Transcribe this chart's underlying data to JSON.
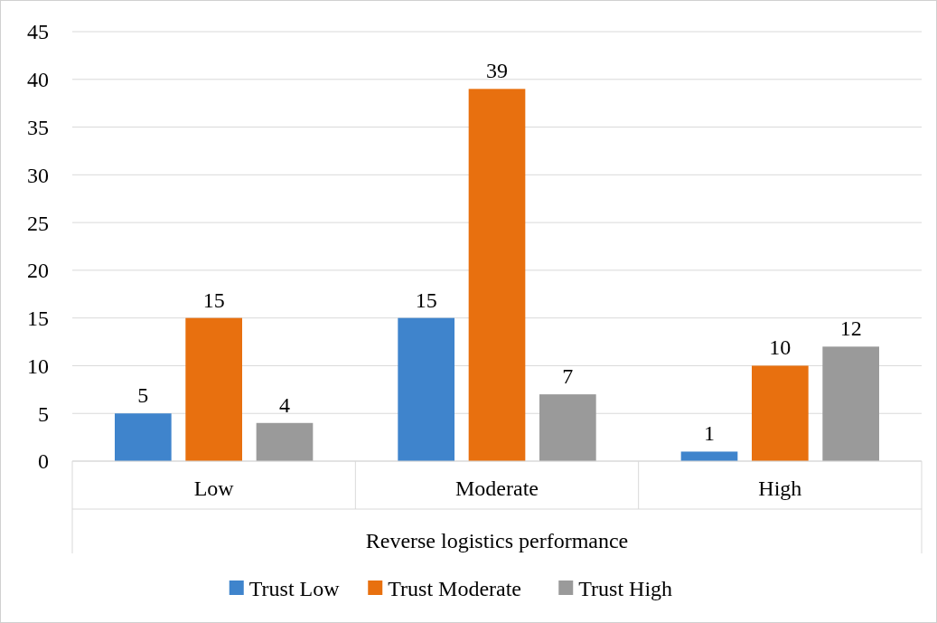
{
  "chart_data": {
    "type": "bar",
    "xlabel": "Reverse logistics performance",
    "categories": [
      "Low",
      "Moderate",
      "High"
    ],
    "series": [
      {
        "name": "Trust Low",
        "color": "#3f84cc",
        "values": [
          5,
          15,
          1
        ]
      },
      {
        "name": "Trust Moderate",
        "color": "#e8700f",
        "values": [
          15,
          39,
          10
        ]
      },
      {
        "name": "Trust High",
        "color": "#9a9a9a",
        "values": [
          4,
          7,
          12
        ]
      }
    ],
    "ylim": [
      0,
      45
    ],
    "yticks": [
      0,
      5,
      10,
      15,
      20,
      25,
      30,
      35,
      40,
      45
    ],
    "grid": "y",
    "legend": "bottom",
    "data_labels": true
  }
}
